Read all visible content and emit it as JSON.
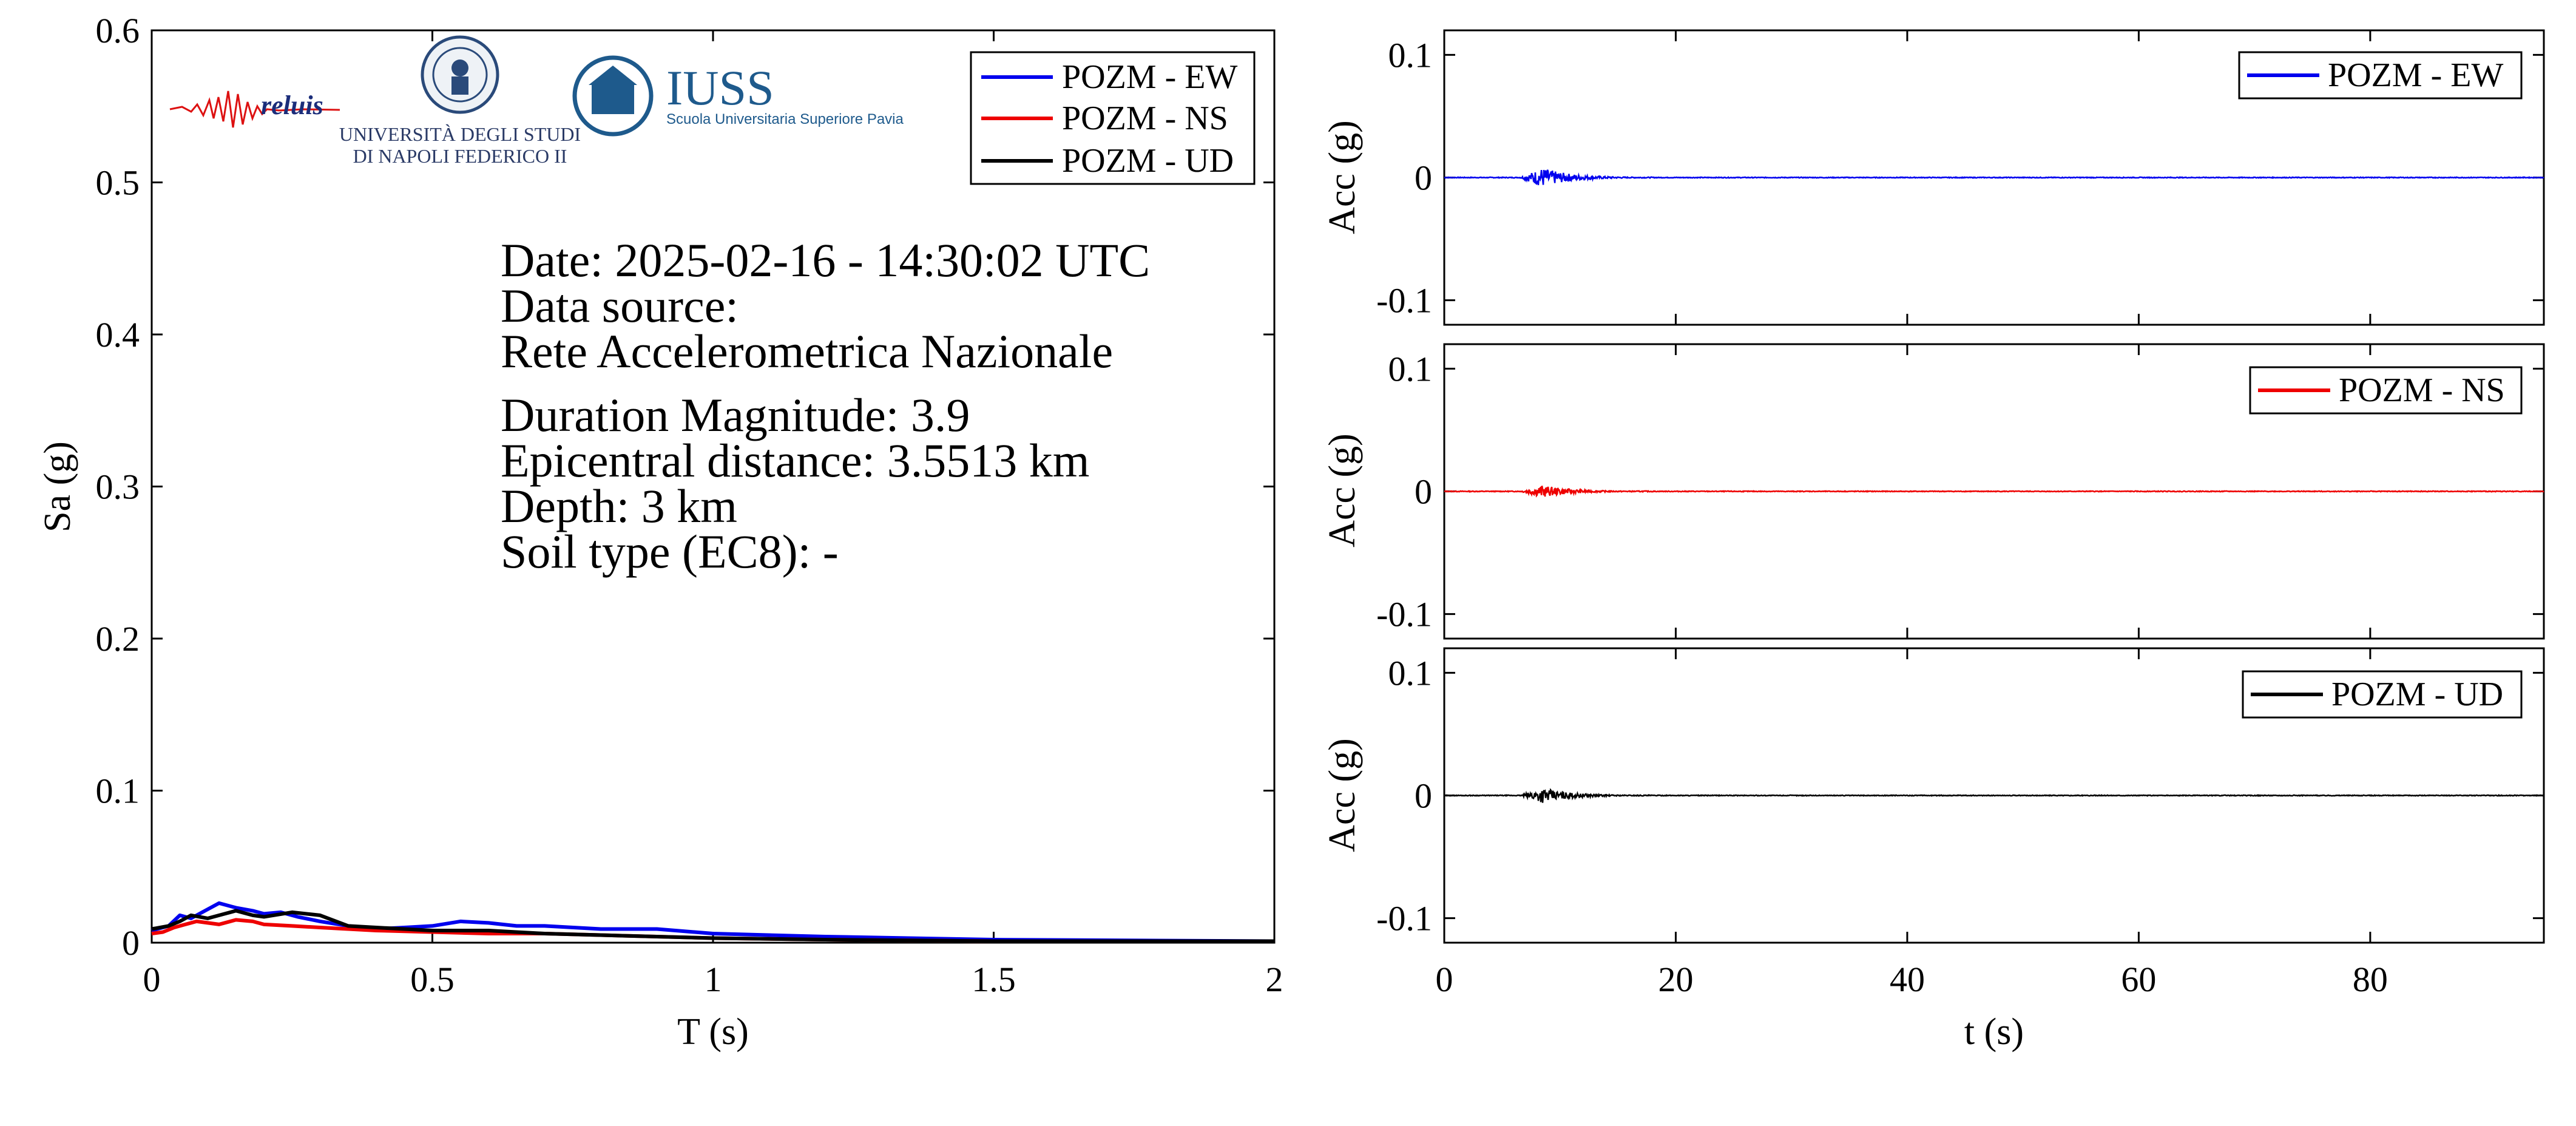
{
  "logos": {
    "reluis": "reluis",
    "unina_line1": "UNIVERSITÀ DEGLI STUDI",
    "unina_line2": "DI NAPOLI FEDERICO II",
    "iuss_title": "IUSS",
    "iuss_subtitle": "Scuola Universitaria Superiore Pavia"
  },
  "info": {
    "date": "Date: 2025-02-16 - 14:30:02 UTC",
    "source_label": "Data source:",
    "source": "Rete Accelerometrica Nazionale",
    "magnitude": "Duration Magnitude: 3.9",
    "distance": "Epicentral distance: 3.5513 km",
    "depth": "Depth: 3 km",
    "soil": "Soil type (EC8): -"
  },
  "colors": {
    "ew": "#0000ee",
    "ns": "#ee0000",
    "ud": "#000000"
  },
  "chart_data": [
    {
      "type": "line",
      "xlabel": "T (s)",
      "ylabel": "Sa (g)",
      "xlim": [
        0,
        2
      ],
      "ylim": [
        0,
        0.6
      ],
      "xticks": [
        0,
        0.5,
        1,
        1.5,
        2
      ],
      "xtick_labels": [
        "0",
        "0.5",
        "1",
        "1.5",
        "2"
      ],
      "yticks": [
        0,
        0.1,
        0.2,
        0.3,
        0.4,
        0.5,
        0.6
      ],
      "ytick_labels": [
        "0",
        "0.1",
        "0.2",
        "0.3",
        "0.4",
        "0.5",
        "0.6"
      ],
      "legend": "top-right",
      "grid": false,
      "series": [
        {
          "name": "POZM - EW",
          "color": "#0000ee",
          "x": [
            0,
            0.03,
            0.05,
            0.07,
            0.1,
            0.12,
            0.15,
            0.18,
            0.2,
            0.23,
            0.26,
            0.3,
            0.35,
            0.4,
            0.45,
            0.5,
            0.55,
            0.6,
            0.65,
            0.7,
            0.8,
            0.9,
            1.0,
            1.2,
            1.5,
            2.0
          ],
          "y": [
            0.008,
            0.011,
            0.018,
            0.016,
            0.022,
            0.026,
            0.023,
            0.021,
            0.019,
            0.02,
            0.017,
            0.014,
            0.011,
            0.009,
            0.01,
            0.011,
            0.014,
            0.013,
            0.011,
            0.011,
            0.009,
            0.009,
            0.006,
            0.004,
            0.002,
            0.001
          ]
        },
        {
          "name": "POZM - NS",
          "color": "#ee0000",
          "x": [
            0,
            0.02,
            0.04,
            0.06,
            0.08,
            0.1,
            0.12,
            0.15,
            0.18,
            0.2,
            0.25,
            0.3,
            0.35,
            0.4,
            0.5,
            0.6,
            0.7,
            0.8,
            0.9,
            1.0,
            1.2,
            1.5,
            2.0
          ],
          "y": [
            0.006,
            0.007,
            0.01,
            0.012,
            0.014,
            0.013,
            0.012,
            0.015,
            0.014,
            0.012,
            0.011,
            0.01,
            0.009,
            0.008,
            0.007,
            0.006,
            0.006,
            0.005,
            0.004,
            0.003,
            0.002,
            0.001,
            0.001
          ]
        },
        {
          "name": "POZM - UD",
          "color": "#000000",
          "x": [
            0,
            0.03,
            0.05,
            0.07,
            0.1,
            0.13,
            0.15,
            0.18,
            0.2,
            0.25,
            0.3,
            0.35,
            0.4,
            0.45,
            0.5,
            0.6,
            0.7,
            0.8,
            0.9,
            1.0,
            1.2,
            1.5,
            2.0
          ],
          "y": [
            0.009,
            0.011,
            0.014,
            0.018,
            0.016,
            0.019,
            0.021,
            0.018,
            0.017,
            0.02,
            0.018,
            0.011,
            0.01,
            0.009,
            0.008,
            0.008,
            0.006,
            0.005,
            0.004,
            0.003,
            0.002,
            0.001,
            0.001
          ]
        }
      ]
    },
    {
      "type": "line",
      "xlabel": "",
      "ylabel": "Acc (g)",
      "xlim": [
        0,
        95
      ],
      "ylim": [
        -0.12,
        0.12
      ],
      "yticks": [
        -0.1,
        0,
        0.1
      ],
      "ytick_labels": [
        "-0.1",
        "0",
        "0.1"
      ],
      "legend": "top-right",
      "series": [
        {
          "name": "POZM - EW",
          "color": "#0000ee",
          "burst": {
            "t_start": 6.5,
            "t_peak": 8.5,
            "t_end": 18,
            "peak": 0.008
          }
        }
      ]
    },
    {
      "type": "line",
      "xlabel": "",
      "ylabel": "Acc (g)",
      "xlim": [
        0,
        95
      ],
      "ylim": [
        -0.12,
        0.12
      ],
      "yticks": [
        -0.1,
        0,
        0.1
      ],
      "ytick_labels": [
        "-0.1",
        "0",
        "0.1"
      ],
      "legend": "top-right",
      "series": [
        {
          "name": "POZM - NS",
          "color": "#ee0000",
          "burst": {
            "t_start": 6.5,
            "t_peak": 8.5,
            "t_end": 18,
            "peak": 0.005
          }
        }
      ]
    },
    {
      "type": "line",
      "xlabel": "t (s)",
      "ylabel": "Acc (g)",
      "xlim": [
        0,
        95
      ],
      "ylim": [
        -0.12,
        0.12
      ],
      "xticks": [
        0,
        20,
        40,
        60,
        80
      ],
      "xtick_labels": [
        "0",
        "20",
        "40",
        "60",
        "80"
      ],
      "yticks": [
        -0.1,
        0,
        0.1
      ],
      "ytick_labels": [
        "-0.1",
        "0",
        "0.1"
      ],
      "legend": "top-right",
      "series": [
        {
          "name": "POZM - UD",
          "color": "#000000",
          "burst": {
            "t_start": 6.5,
            "t_peak": 8.5,
            "t_end": 18,
            "peak": 0.006
          }
        }
      ]
    }
  ]
}
